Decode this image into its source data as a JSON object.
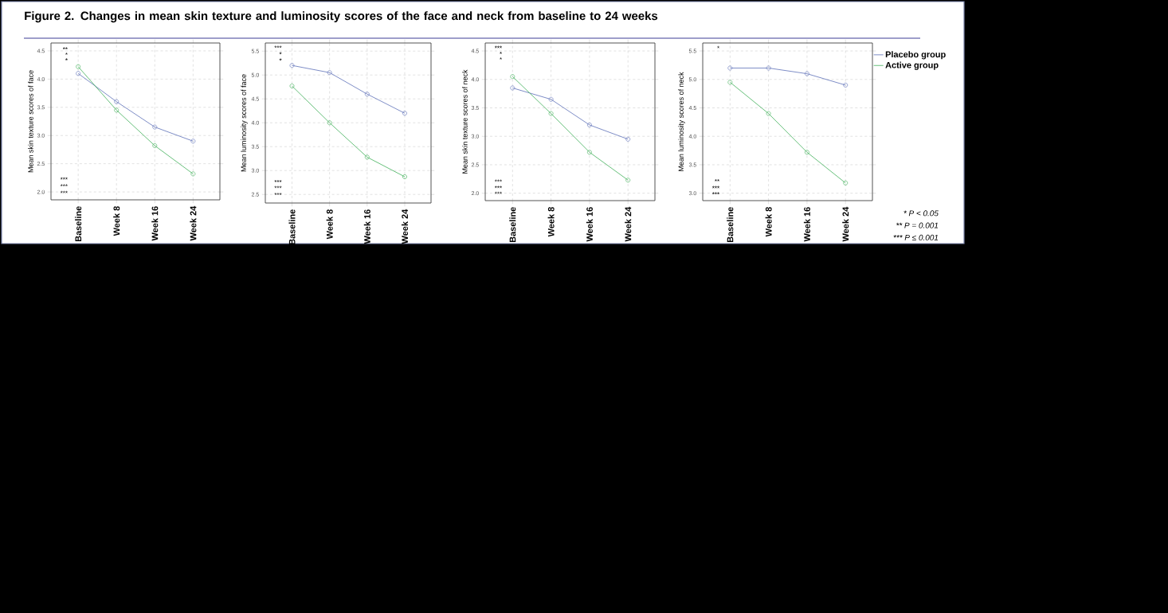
{
  "chart_data": [
    {
      "type": "line",
      "title": "Figure 2. Changes in mean skin texture and luminosity scores of the face and neck from baseline to 24 weeks",
      "ylabel": "Mean skin texture scores of face",
      "categories": [
        "Baseline",
        "Week 8",
        "Week 16",
        "Week 24"
      ],
      "series": [
        {
          "color": "#6f7fbf",
          "values": [
            4.1,
            3.6,
            3.15,
            2.9
          ]
        },
        {
          "color": "#55b86b",
          "values": [
            4.22,
            3.45,
            2.82,
            2.32
          ]
        }
      ],
      "ylim": [
        1.86,
        4.64
      ],
      "yticks": [
        {
          "value": 2,
          "label": "2.0"
        },
        {
          "value": 2.5,
          "label": "2.5"
        },
        {
          "value": 3,
          "label": "3.0"
        },
        {
          "value": 3.5,
          "label": "3.5"
        },
        {
          "value": 4,
          "label": "4.0"
        },
        {
          "value": 4.5,
          "label": "4.5"
        }
      ],
      "grid": true,
      "marker": "circle",
      "line_style": "solid",
      "annotations": [
        "**",
        "*",
        "*",
        "***",
        "***",
        "***"
      ]
    },
    {
      "type": "line",
      "ylabel": "Mean luminosity scores of face",
      "categories": [
        "Baseline",
        "Week 8",
        "Week 16",
        "Week 24"
      ],
      "series": [
        {
          "color": "#6f7fbf",
          "values": [
            5.2,
            5.05,
            4.6,
            4.2
          ]
        },
        {
          "color": "#55b86b",
          "values": [
            4.77,
            4.0,
            3.28,
            2.87
          ]
        }
      ],
      "ylim": [
        2.32,
        5.67
      ],
      "yticks": [
        {
          "value": 2.5,
          "label": "2.5"
        },
        {
          "value": 3,
          "label": "3.0"
        },
        {
          "value": 3.5,
          "label": "3.5"
        },
        {
          "value": 4,
          "label": "4.0"
        },
        {
          "value": 4.5,
          "label": "4.5"
        },
        {
          "value": 5,
          "label": "5.0"
        },
        {
          "value": 5.5,
          "label": "5.5"
        }
      ],
      "grid": true,
      "marker": "circle",
      "line_style": "solid",
      "annotations": [
        "***",
        "*",
        "*",
        "***",
        "***",
        "***"
      ]
    },
    {
      "type": "line",
      "ylabel": "Mean skin texture scores of neck",
      "categories": [
        "Baseline",
        "Week 8",
        "Week 16",
        "Week 24"
      ],
      "series": [
        {
          "color": "#6f7fbf",
          "values": [
            3.85,
            3.65,
            3.2,
            2.95
          ]
        },
        {
          "color": "#55b86b",
          "values": [
            4.05,
            3.4,
            2.72,
            2.23
          ]
        }
      ],
      "ylim": [
        1.87,
        4.64
      ],
      "yticks": [
        {
          "value": 2,
          "label": "2.0"
        },
        {
          "value": 2.5,
          "label": "2.5"
        },
        {
          "value": 3,
          "label": "3.0"
        },
        {
          "value": 3.5,
          "label": "3.5"
        },
        {
          "value": 4,
          "label": "4.0"
        },
        {
          "value": 4.5,
          "label": "4.5"
        }
      ],
      "grid": true,
      "marker": "circle",
      "line_style": "solid",
      "annotations": [
        "***",
        "*",
        "*",
        "***",
        "***",
        "***"
      ]
    },
    {
      "type": "line",
      "ylabel": "Mean luminosity scores of neck",
      "categories": [
        "Baseline",
        "Week 8",
        "Week 16",
        "Week 24"
      ],
      "series": [
        {
          "name": "Placebo group",
          "color": "#6f7fbf",
          "values": [
            5.2,
            5.2,
            5.1,
            4.9
          ]
        },
        {
          "name": "Active group",
          "color": "#55b86b",
          "values": [
            4.95,
            4.4,
            3.72,
            3.18
          ]
        }
      ],
      "ylim": [
        2.87,
        5.64
      ],
      "yticks": [
        {
          "value": 3,
          "label": "3.0"
        },
        {
          "value": 3.5,
          "label": "3.5"
        },
        {
          "value": 4,
          "label": "4.0"
        },
        {
          "value": 4.5,
          "label": "4.5"
        },
        {
          "value": 5,
          "label": "5.0"
        },
        {
          "value": 5.5,
          "label": "5.5"
        }
      ],
      "grid": true,
      "marker": "circle",
      "line_style": "solid",
      "legend": "right",
      "annotations": [
        "*",
        "**",
        "***",
        "***",
        "* P < 0.05",
        "** P = 0.001",
        "*** P ≤ 0.001"
      ]
    }
  ]
}
